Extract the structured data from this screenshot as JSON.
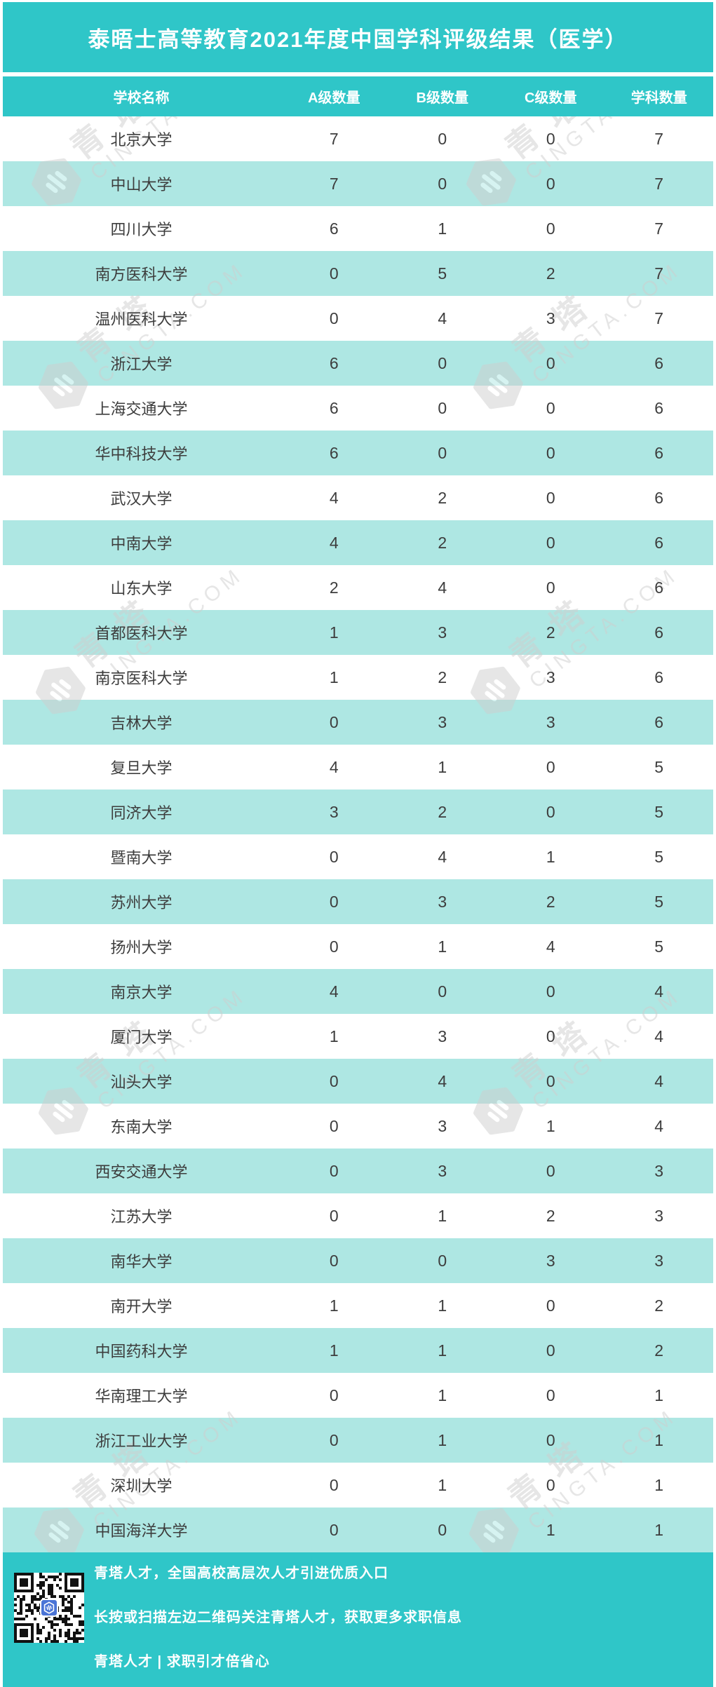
{
  "title": "泰晤士高等教育2021年度中国学科评级结果（医学）",
  "chart_data": {
    "type": "table",
    "title": "泰晤士高等教育2021年度中国学科评级结果（医学）",
    "columns": [
      "学校名称",
      "A级数量",
      "B级数量",
      "C级数量",
      "学科数量"
    ],
    "rows": [
      [
        "北京大学",
        7,
        0,
        0,
        7
      ],
      [
        "中山大学",
        7,
        0,
        0,
        7
      ],
      [
        "四川大学",
        6,
        1,
        0,
        7
      ],
      [
        "南方医科大学",
        0,
        5,
        2,
        7
      ],
      [
        "温州医科大学",
        0,
        4,
        3,
        7
      ],
      [
        "浙江大学",
        6,
        0,
        0,
        6
      ],
      [
        "上海交通大学",
        6,
        0,
        0,
        6
      ],
      [
        "华中科技大学",
        6,
        0,
        0,
        6
      ],
      [
        "武汉大学",
        4,
        2,
        0,
        6
      ],
      [
        "中南大学",
        4,
        2,
        0,
        6
      ],
      [
        "山东大学",
        2,
        4,
        0,
        6
      ],
      [
        "首都医科大学",
        1,
        3,
        2,
        6
      ],
      [
        "南京医科大学",
        1,
        2,
        3,
        6
      ],
      [
        "吉林大学",
        0,
        3,
        3,
        6
      ],
      [
        "复旦大学",
        4,
        1,
        0,
        5
      ],
      [
        "同济大学",
        3,
        2,
        0,
        5
      ],
      [
        "暨南大学",
        0,
        4,
        1,
        5
      ],
      [
        "苏州大学",
        0,
        3,
        2,
        5
      ],
      [
        "扬州大学",
        0,
        1,
        4,
        5
      ],
      [
        "南京大学",
        4,
        0,
        0,
        4
      ],
      [
        "厦门大学",
        1,
        3,
        0,
        4
      ],
      [
        "汕头大学",
        0,
        4,
        0,
        4
      ],
      [
        "东南大学",
        0,
        3,
        1,
        4
      ],
      [
        "西安交通大学",
        0,
        3,
        0,
        3
      ],
      [
        "江苏大学",
        0,
        1,
        2,
        3
      ],
      [
        "南华大学",
        0,
        0,
        3,
        3
      ],
      [
        "南开大学",
        1,
        1,
        0,
        2
      ],
      [
        "中国药科大学",
        1,
        1,
        0,
        2
      ],
      [
        "华南理工大学",
        0,
        1,
        0,
        1
      ],
      [
        "浙江工业大学",
        0,
        1,
        0,
        1
      ],
      [
        "深圳大学",
        0,
        1,
        0,
        1
      ],
      [
        "中国海洋大学",
        0,
        0,
        1,
        1
      ]
    ]
  },
  "watermark": {
    "brand_cn": "青塔",
    "brand_en": "CINGTA.COM"
  },
  "footer": {
    "line1": "青塔人才，全国高校高层次人才引进优质入口",
    "line2": "长按或扫描左边二维码关注青塔人才，获取更多求职信息",
    "line3": "青塔人才 | 求职引才倍省心"
  },
  "colors": {
    "teal": "#2fc6c8",
    "row_alt": "#aee7e3"
  }
}
